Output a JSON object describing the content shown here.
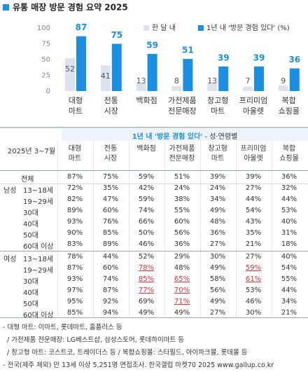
{
  "title": "유통 매장 방문 경험 요약 2025",
  "chart_data": {
    "type": "bar",
    "categories": [
      "대형\n마트",
      "전통\n시장",
      "백화점",
      "가전제품\n전문매장",
      "창고형\n마트",
      "프리미엄\n아울렛",
      "복합\n쇼핑몰"
    ],
    "series": [
      {
        "name": "한 달 내",
        "color": "#dde3ee",
        "values": [
          52,
          41,
          13,
          8,
          13,
          7,
          9
        ]
      },
      {
        "name": "1년 내 '방문 경험 있다' (%)",
        "color": "#1a8fe3",
        "values": [
          87,
          75,
          59,
          51,
          39,
          39,
          36
        ]
      }
    ],
    "ylim": [
      0,
      100
    ],
    "yticks": [
      0,
      25,
      50,
      75,
      100
    ]
  },
  "table": {
    "title": "1년 내 '방문 경험 있다'",
    "subtitle": " - 성·연령별",
    "period": "2025년 3~7월",
    "columns": [
      "대형\n마트",
      "전통\n시장",
      "백화점",
      "가전제품\n전문매장",
      "창고형\n마트",
      "프리미엄\n아울렛",
      "복합\n쇼핑몰"
    ],
    "rows": [
      {
        "label": "전체",
        "cells": [
          "87%",
          "75%",
          "59%",
          "51%",
          "39%",
          "39%",
          "36%"
        ]
      },
      {
        "group": "남성",
        "label": "13~18세",
        "cells": [
          "72%",
          "35%",
          "42%",
          "24%",
          "24%",
          "27%",
          "32%"
        ]
      },
      {
        "label": "19~29세",
        "cells": [
          "82%",
          "47%",
          "59%",
          "38%",
          "34%",
          "44%",
          "44%"
        ]
      },
      {
        "label": "30대",
        "cells": [
          "89%",
          "60%",
          "74%",
          "55%",
          "49%",
          "54%",
          "53%"
        ]
      },
      {
        "label": "40대",
        "cells": [
          "93%",
          "76%",
          "66%",
          "60%",
          "48%",
          "43%",
          "40%"
        ]
      },
      {
        "label": "50대",
        "cells": [
          "90%",
          "85%",
          "50%",
          "56%",
          "36%",
          "35%",
          "31%"
        ]
      },
      {
        "label": "60대 이상",
        "cells": [
          "83%",
          "89%",
          "46%",
          "36%",
          "27%",
          "21%",
          "18%"
        ]
      },
      {
        "group": "여성",
        "label": "13~18세",
        "cells": [
          "78%",
          "44%",
          "52%",
          "29%",
          "30%",
          "27%",
          "40%"
        ]
      },
      {
        "label": "19~29세",
        "cells": [
          "87%",
          "60%",
          "78%",
          "48%",
          "49%",
          "59%",
          "54%"
        ]
      },
      {
        "label": "30대",
        "cells": [
          "93%",
          "74%",
          "85%",
          "65%",
          "58%",
          "61%",
          "55%"
        ]
      },
      {
        "label": "40대",
        "cells": [
          "97%",
          "87%",
          "77%",
          "70%",
          "56%",
          "53%",
          "44%"
        ]
      },
      {
        "label": "50대",
        "cells": [
          "95%",
          "92%",
          "69%",
          "71%",
          "49%",
          "46%",
          "34%"
        ]
      },
      {
        "label": "60대 이상",
        "cells": [
          "85%",
          "94%",
          "49%",
          "49%",
          "27%",
          "30%",
          "21%"
        ]
      }
    ],
    "highlight": [
      [
        8,
        2
      ],
      [
        8,
        5
      ],
      [
        9,
        2
      ],
      [
        9,
        3
      ],
      [
        9,
        5
      ],
      [
        10,
        2
      ],
      [
        10,
        3
      ],
      [
        11,
        3
      ]
    ]
  },
  "notes": [
    "- 대형 마트: 이마트, 롯데마트, 홈플러스 등",
    "  / 가전제품 전문매장: LG베스트샵, 삼성스토어, 롯데하이마트 등",
    "  / 창고형 마트: 코스트코, 트레이더스 등 / 복합쇼핑몰: 스타필드, 아이파크몰, 롯데몰 등",
    "- 전국(제주 제외) 만 13세 이상 5,251명 면접조사. 한국갤럽 마켓70 2025 www.gallup.co.kr"
  ]
}
